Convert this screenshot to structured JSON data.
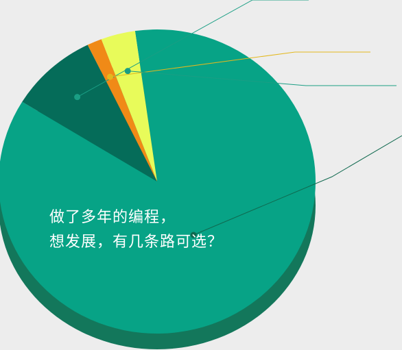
{
  "chart_data": {
    "type": "pie",
    "title": "",
    "slices": [
      {
        "value": 86.0,
        "color": "#07a386",
        "shadow": "#13775b"
      },
      {
        "value": 9.0,
        "color": "#056c59",
        "shadow": "#04503f"
      },
      {
        "value": 1.5,
        "color": "#f08a17",
        "shadow": "#c06e10"
      },
      {
        "value": 3.5,
        "color": "#e8fb5a",
        "shadow": "#b9c948"
      }
    ],
    "start_angle_deg": -8,
    "legend": "none",
    "annotation_lines": [
      {
        "slice": 1,
        "color": "#1a9e84"
      },
      {
        "slice": 2,
        "color": "#e3b81d"
      },
      {
        "slice": 3,
        "color": "#1a9e84"
      },
      {
        "slice": 0,
        "color": "#10694f"
      }
    ]
  },
  "caption": {
    "line1": "做了多年的编程，",
    "line2": "想发展，有几条路可选？"
  },
  "colors": {
    "background": "#ededed",
    "caption_text": "#ffffff"
  }
}
